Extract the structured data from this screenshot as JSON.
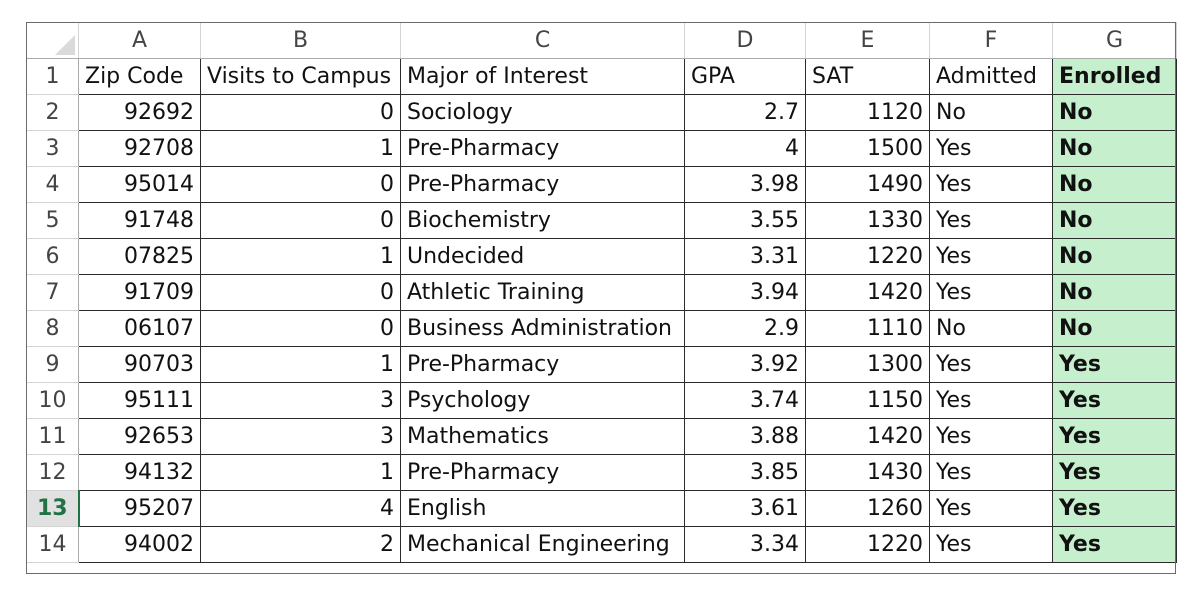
{
  "columns": [
    "A",
    "B",
    "C",
    "D",
    "E",
    "F",
    "G"
  ],
  "rows": [
    {
      "num": "1",
      "cells": [
        "Zip Code",
        "Visits to Campus",
        "Major of Interest",
        "GPA",
        "SAT",
        "Admitted",
        "Enrolled"
      ]
    },
    {
      "num": "2",
      "cells": [
        "92692",
        "0",
        "Sociology",
        "2.7",
        "1120",
        "No",
        "No"
      ]
    },
    {
      "num": "3",
      "cells": [
        "92708",
        "1",
        "Pre-Pharmacy",
        "4",
        "1500",
        "Yes",
        "No"
      ]
    },
    {
      "num": "4",
      "cells": [
        "95014",
        "0",
        "Pre-Pharmacy",
        "3.98",
        "1490",
        "Yes",
        "No"
      ]
    },
    {
      "num": "5",
      "cells": [
        "91748",
        "0",
        "Biochemistry",
        "3.55",
        "1330",
        "Yes",
        "No"
      ]
    },
    {
      "num": "6",
      "cells": [
        "07825",
        "1",
        "Undecided",
        "3.31",
        "1220",
        "Yes",
        "No"
      ]
    },
    {
      "num": "7",
      "cells": [
        "91709",
        "0",
        "Athletic Training",
        "3.94",
        "1420",
        "Yes",
        "No"
      ]
    },
    {
      "num": "8",
      "cells": [
        "06107",
        "0",
        "Business Administration",
        "2.9",
        "1110",
        "No",
        "No"
      ]
    },
    {
      "num": "9",
      "cells": [
        "90703",
        "1",
        "Pre-Pharmacy",
        "3.92",
        "1300",
        "Yes",
        "Yes"
      ]
    },
    {
      "num": "10",
      "cells": [
        "95111",
        "3",
        "Psychology",
        "3.74",
        "1150",
        "Yes",
        "Yes"
      ]
    },
    {
      "num": "11",
      "cells": [
        "92653",
        "3",
        "Mathematics",
        "3.88",
        "1420",
        "Yes",
        "Yes"
      ]
    },
    {
      "num": "12",
      "cells": [
        "94132",
        "1",
        "Pre-Pharmacy",
        "3.85",
        "1430",
        "Yes",
        "Yes"
      ]
    },
    {
      "num": "13",
      "cells": [
        "95207",
        "4",
        "English",
        "3.61",
        "1260",
        "Yes",
        "Yes"
      ]
    },
    {
      "num": "14",
      "cells": [
        "94002",
        "2",
        "Mechanical Engineering",
        "3.34",
        "1220",
        "Yes",
        "Yes"
      ]
    }
  ],
  "active_row": "13",
  "colors": {
    "highlight_fill": "#c6efce",
    "active_header": "#217346"
  }
}
